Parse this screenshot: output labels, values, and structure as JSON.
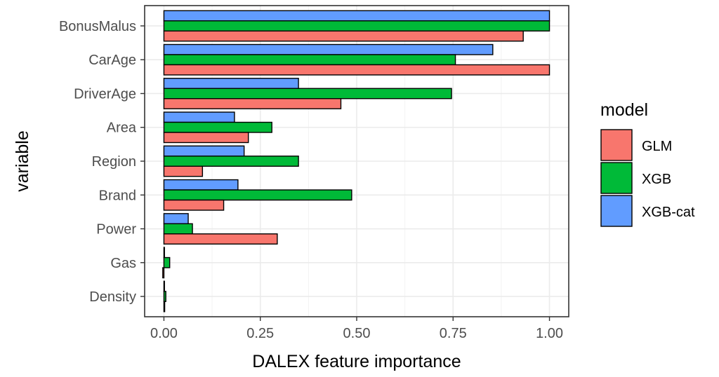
{
  "chart_data": {
    "type": "bar",
    "orientation": "horizontal",
    "categories": [
      "BonusMalus",
      "CarAge",
      "DriverAge",
      "Area",
      "Region",
      "Brand",
      "Power",
      "Gas",
      "Density"
    ],
    "series": [
      {
        "name": "GLM",
        "color": "#F8766D",
        "values": [
          0.932,
          1.0,
          0.459,
          0.219,
          0.1,
          0.155,
          0.294,
          -0.003,
          0.002
        ]
      },
      {
        "name": "XGB",
        "color": "#00BA38",
        "values": [
          1.0,
          0.756,
          0.746,
          0.28,
          0.349,
          0.487,
          0.074,
          0.015,
          0.005
        ]
      },
      {
        "name": "XGB-cat",
        "color": "#619CFF",
        "values": [
          1.0,
          0.853,
          0.349,
          0.183,
          0.208,
          0.192,
          0.063,
          0.001,
          0.0
        ]
      }
    ],
    "xlabel": "DALEX feature importance",
    "ylabel": "variable",
    "xlim": [
      -0.05,
      1.05
    ],
    "xticks": [
      0.0,
      0.25,
      0.5,
      0.75,
      1.0
    ],
    "xtick_labels": [
      "0.00",
      "0.25",
      "0.50",
      "0.75",
      "1.00"
    ],
    "grid": true,
    "legend": {
      "title": "model",
      "position": "right"
    }
  }
}
